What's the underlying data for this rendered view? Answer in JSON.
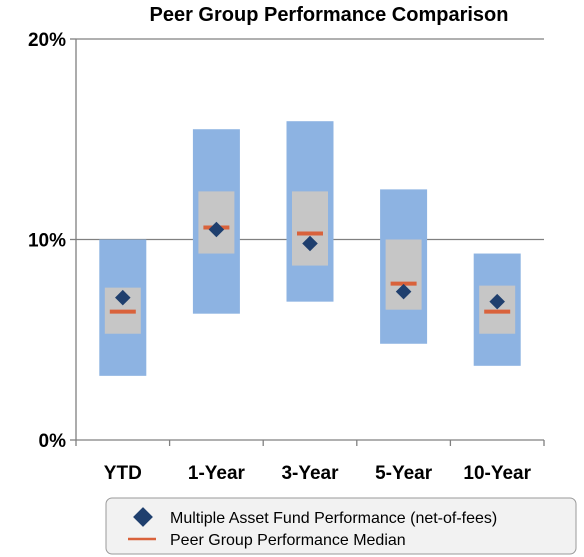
{
  "chart_data": {
    "type": "box",
    "title": "Peer Group Performance Comparison",
    "categories": [
      "YTD",
      "1-Year",
      "3-Year",
      "5-Year",
      "10-Year"
    ],
    "y_ticks": [
      "0%",
      "10%",
      "20%"
    ],
    "ylim": [
      0,
      20
    ],
    "grid": true,
    "outer_range": [
      {
        "low": 3.2,
        "high": 10.0
      },
      {
        "low": 6.3,
        "high": 15.5
      },
      {
        "low": 6.9,
        "high": 15.9
      },
      {
        "low": 4.8,
        "high": 12.5
      },
      {
        "low": 3.7,
        "high": 9.3
      }
    ],
    "inner_range": [
      {
        "low": 5.3,
        "high": 7.6
      },
      {
        "low": 9.3,
        "high": 12.4
      },
      {
        "low": 8.7,
        "high": 12.4
      },
      {
        "low": 6.5,
        "high": 10.0
      },
      {
        "low": 5.3,
        "high": 7.7
      }
    ],
    "series": [
      {
        "name": "Multiple Asset Fund Performance (net-of-fees)",
        "marker": "diamond",
        "color": "#1f3f6e",
        "values": [
          7.1,
          10.5,
          9.8,
          7.4,
          6.9
        ]
      },
      {
        "name": "Peer Group Performance Median",
        "marker": "dash",
        "color": "#d9623b",
        "values": [
          6.4,
          10.6,
          10.3,
          7.8,
          6.4
        ]
      }
    ],
    "legend_position": "bottom",
    "colors": {
      "outer": "#8db3e2",
      "inner": "#c6c6c6",
      "grid": "#808080",
      "axis": "#808080"
    }
  }
}
